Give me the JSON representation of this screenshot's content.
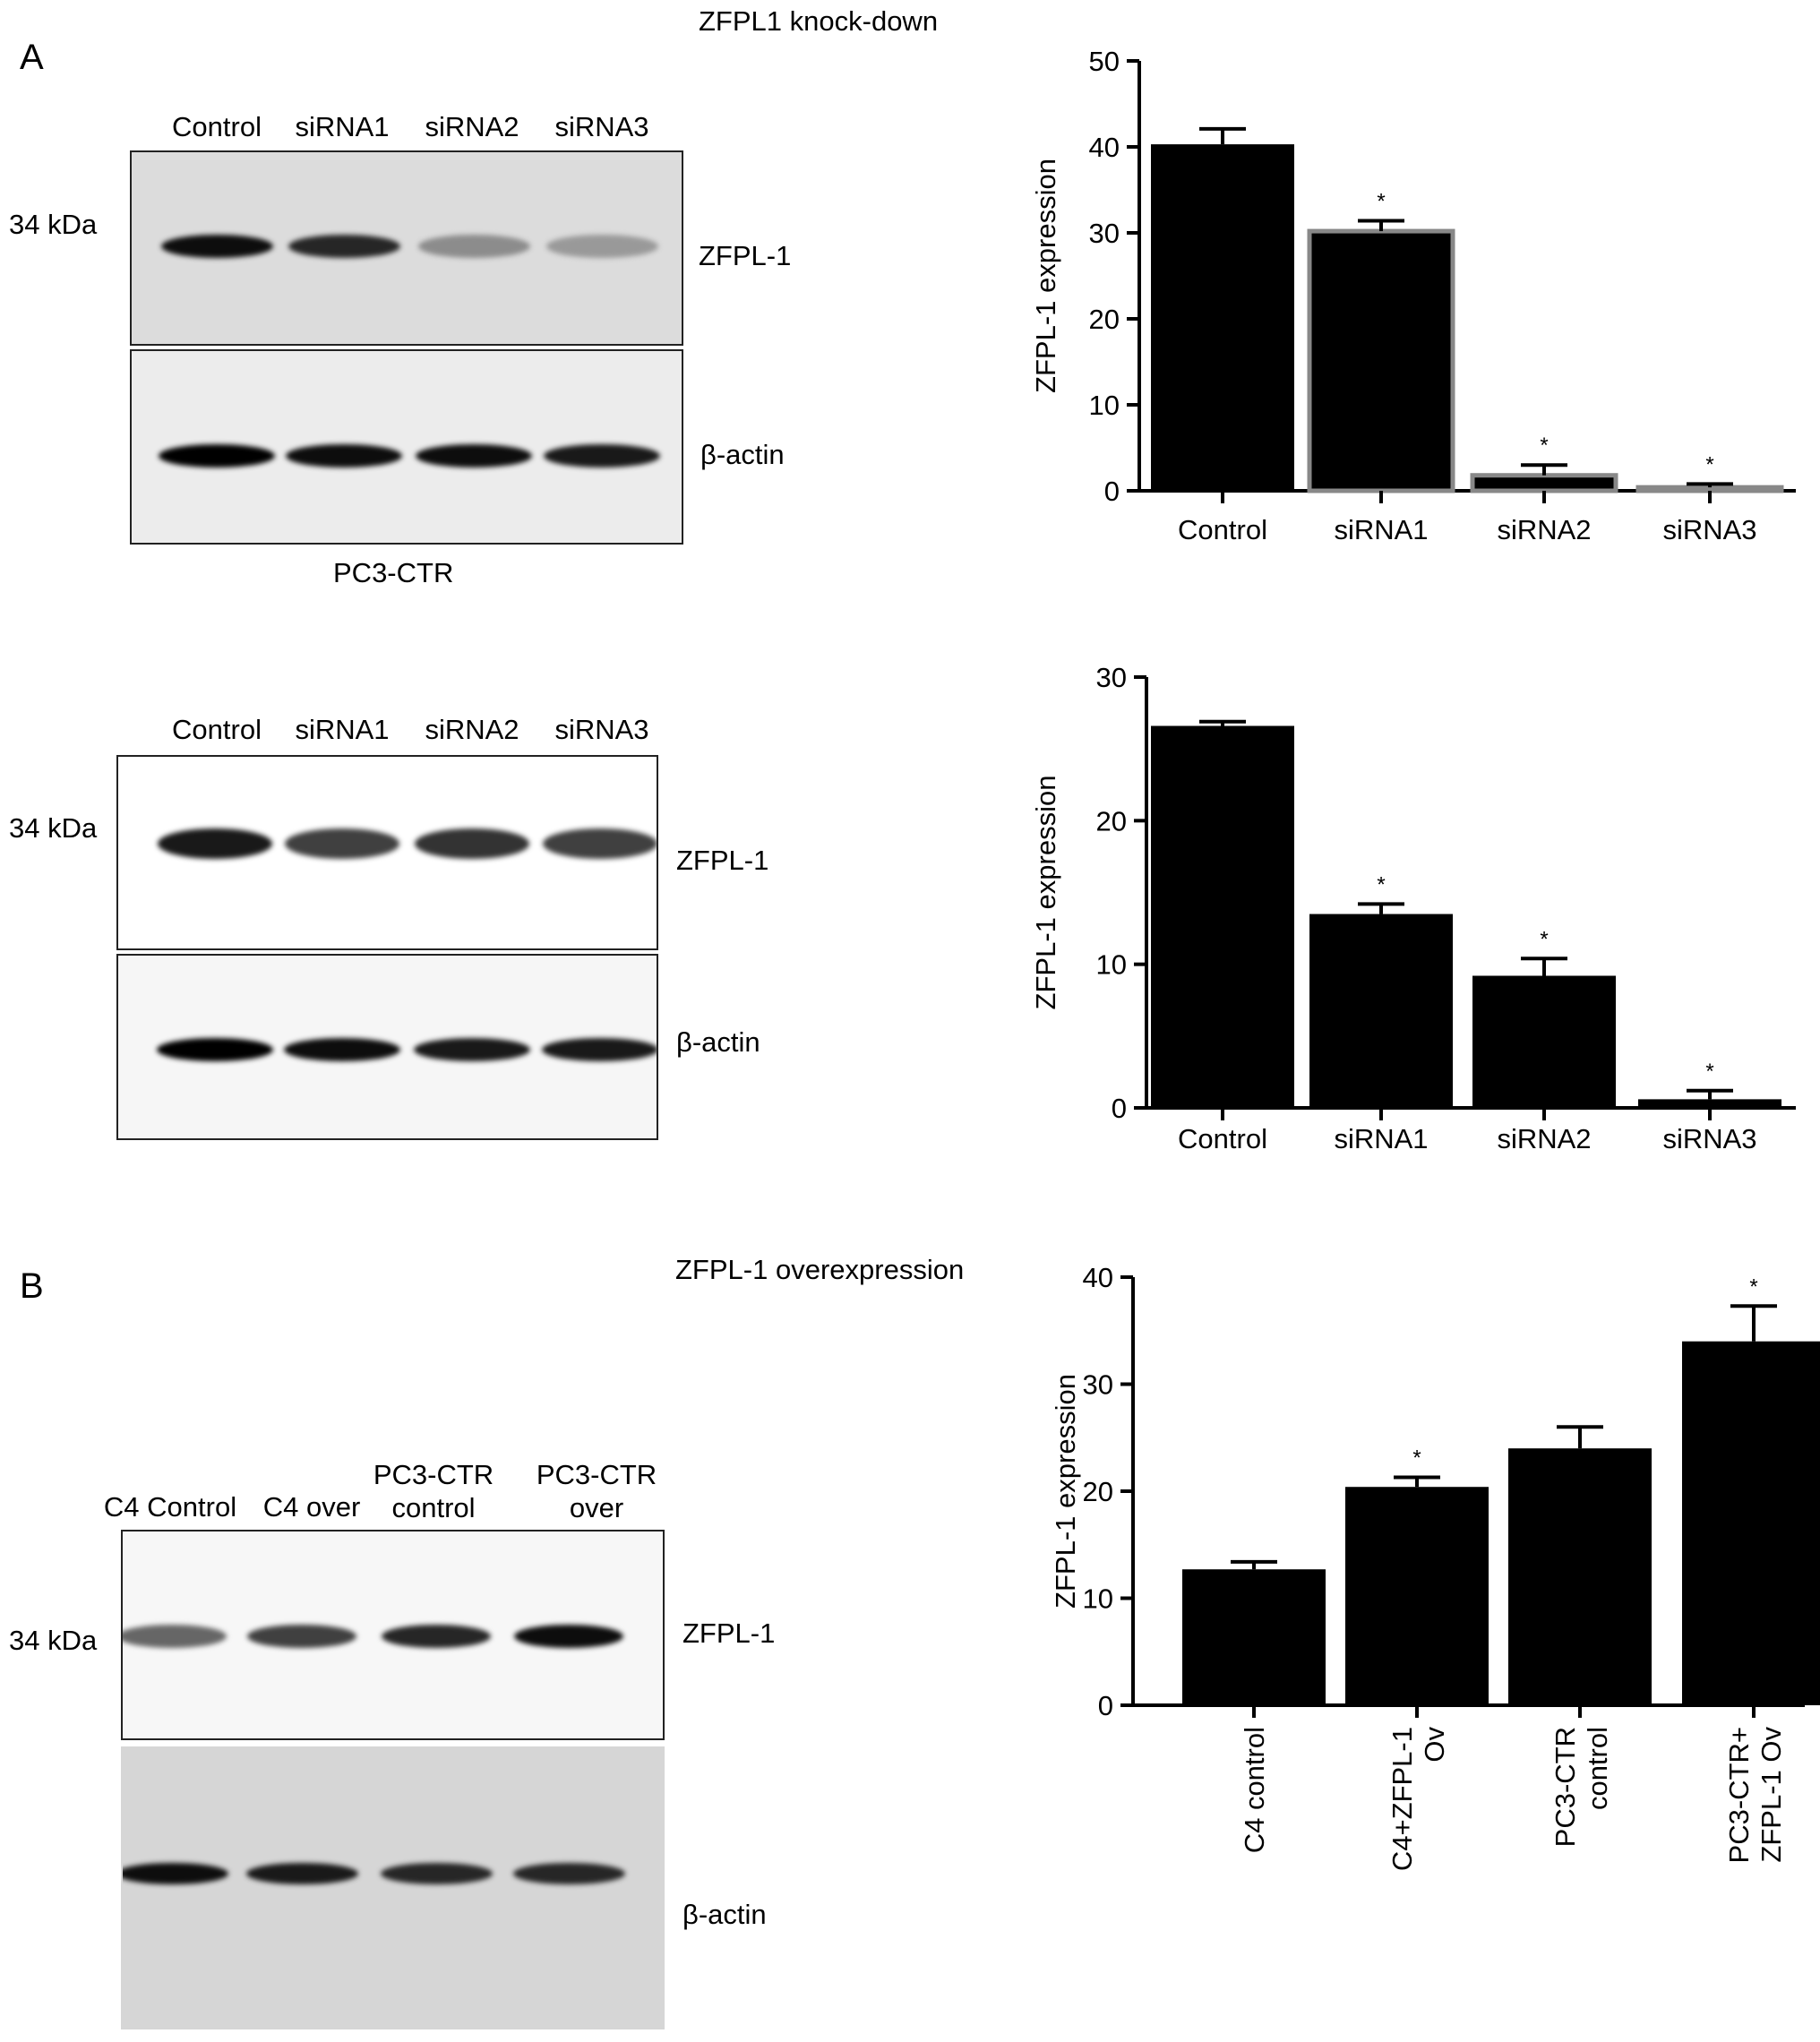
{
  "panel_a": {
    "letter": "A",
    "title": "ZFPL1 knock-down",
    "blot1": {
      "lanes": [
        "Control",
        "siRNA1",
        "siRNA2",
        "siRNA3"
      ],
      "marker": "34 kDa",
      "target": "ZFPL-1",
      "loading": "β-actin",
      "cell_line": "PC3-CTR",
      "zfpl_intensity": [
        0.95,
        0.85,
        0.45,
        0.4
      ],
      "actin_intensity": [
        1.0,
        0.95,
        0.95,
        0.9
      ]
    },
    "blot2": {
      "lanes": [
        "Control",
        "siRNA1",
        "siRNA2",
        "siRNA3"
      ],
      "marker": "34 kDa",
      "target": "ZFPL-1",
      "loading": "β-actin",
      "zfpl_intensity": [
        0.9,
        0.75,
        0.8,
        0.75
      ],
      "actin_intensity": [
        1.0,
        0.95,
        0.9,
        0.9
      ]
    }
  },
  "panel_b": {
    "letter": "B",
    "title": "ZFPL-1 overexpression",
    "blot": {
      "lanes": [
        "C4 Control",
        "C4 over",
        "PC3-CTR\ncontrol",
        "PC3-CTR\nover"
      ],
      "marker": "34 kDa",
      "target": "ZFPL-1",
      "loading": "β-actin",
      "zfpl_intensity": [
        0.6,
        0.75,
        0.85,
        0.95
      ],
      "actin_intensity": [
        0.95,
        0.9,
        0.85,
        0.85
      ]
    }
  },
  "chart_data": [
    {
      "type": "bar",
      "categories": [
        "Control",
        "siRNA1",
        "siRNA2",
        "siRNA3"
      ],
      "values": [
        40.3,
        30.2,
        1.8,
        0.4
      ],
      "errors": [
        1.8,
        1.2,
        1.2,
        0.4
      ],
      "significance": [
        "",
        "*",
        "*",
        "*"
      ],
      "ylabel": "ZFPL-1 expression",
      "ylim": [
        0,
        50
      ],
      "yticks": [
        0,
        10,
        20,
        30,
        40,
        50
      ],
      "bar_color": "#000000",
      "bar_outline": [
        "#000000",
        "#888888",
        "#888888",
        "#888888"
      ]
    },
    {
      "type": "bar",
      "categories": [
        "Control",
        "siRNA1",
        "siRNA2",
        "siRNA3"
      ],
      "values": [
        26.6,
        13.5,
        9.2,
        0.6
      ],
      "errors": [
        0.3,
        0.7,
        1.2,
        0.6
      ],
      "significance": [
        "",
        "*",
        "*",
        "*"
      ],
      "ylabel": "ZFPL-1 expression",
      "ylim": [
        0,
        30
      ],
      "yticks": [
        0,
        10,
        20,
        30
      ],
      "bar_color": "#000000",
      "bar_outline": [
        "#000000",
        "#000000",
        "#000000",
        "#000000"
      ]
    },
    {
      "type": "bar",
      "categories": [
        "C4 control",
        "C4+ZFPL-1\nOv",
        "PC3-CTR\ncontrol",
        "PC3-CTR+\nZFPL-1 Ov"
      ],
      "values": [
        12.7,
        20.4,
        24.0,
        34.0
      ],
      "errors": [
        0.7,
        0.9,
        2.0,
        3.3
      ],
      "significance": [
        "",
        "*",
        "",
        "*"
      ],
      "ylabel": "ZFPL-1 expression",
      "ylim": [
        0,
        40
      ],
      "yticks": [
        0,
        10,
        20,
        30,
        40
      ],
      "bar_color": "#000000",
      "bar_outline": [
        "#000000",
        "#000000",
        "#000000",
        "#000000"
      ],
      "rotated_labels": true
    }
  ]
}
